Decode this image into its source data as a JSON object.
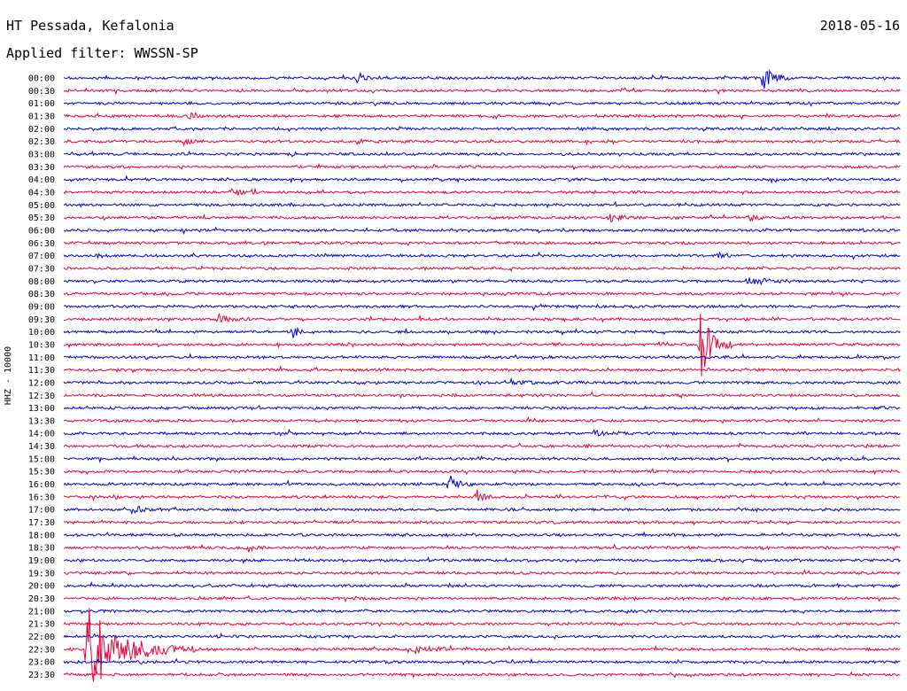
{
  "header": {
    "station": "HT Pessada, Kefalonia",
    "date": "2018-05-16",
    "filter": "Applied filter: WWSSN-SP"
  },
  "chart_data": {
    "type": "line",
    "channel_label": "HHZ - 10000",
    "colors": [
      "#0000cc",
      "#e8003a"
    ],
    "rows": [
      "00:00",
      "00:30",
      "01:00",
      "01:30",
      "02:00",
      "02:30",
      "03:00",
      "03:30",
      "04:00",
      "04:30",
      "05:00",
      "05:30",
      "06:00",
      "06:30",
      "07:00",
      "07:30",
      "08:00",
      "08:30",
      "09:00",
      "09:30",
      "10:00",
      "10:30",
      "11:00",
      "11:30",
      "12:00",
      "12:30",
      "13:00",
      "13:30",
      "14:00",
      "14:30",
      "15:00",
      "15:30",
      "16:00",
      "16:30",
      "17:00",
      "17:30",
      "18:00",
      "18:30",
      "19:00",
      "19:30",
      "20:00",
      "20:30",
      "21:00",
      "21:30",
      "22:00",
      "22:30",
      "23:00",
      "23:30"
    ],
    "row_minutes": 30,
    "events": [
      {
        "row": "00:00",
        "minute": 25.0,
        "amplitude": 16,
        "duration_min": 1.2
      },
      {
        "row": "00:00",
        "minute": 10.5,
        "amplitude": 4,
        "duration_min": 1.0
      },
      {
        "row": "01:30",
        "minute": 4.5,
        "amplitude": 4,
        "duration_min": 0.6
      },
      {
        "row": "02:30",
        "minute": 4.3,
        "amplitude": 6,
        "duration_min": 0.8
      },
      {
        "row": "02:30",
        "minute": 10.5,
        "amplitude": 3,
        "duration_min": 1.0
      },
      {
        "row": "04:30",
        "minute": 6.0,
        "amplitude": 3,
        "duration_min": 2.0
      },
      {
        "row": "05:30",
        "minute": 19.5,
        "amplitude": 5,
        "duration_min": 1.5
      },
      {
        "row": "05:30",
        "minute": 24.5,
        "amplitude": 4,
        "duration_min": 1.5
      },
      {
        "row": "07:00",
        "minute": 1.2,
        "amplitude": 5,
        "duration_min": 0.6
      },
      {
        "row": "07:00",
        "minute": 23.4,
        "amplitude": 6,
        "duration_min": 0.8
      },
      {
        "row": "08:00",
        "minute": 24.5,
        "amplitude": 4,
        "duration_min": 3.0
      },
      {
        "row": "09:30",
        "minute": 5.5,
        "amplitude": 6,
        "duration_min": 1.2
      },
      {
        "row": "10:00",
        "minute": 8.2,
        "amplitude": 7,
        "duration_min": 0.8
      },
      {
        "row": "10:30",
        "minute": 22.8,
        "amplitude": 48,
        "duration_min": 1.2
      },
      {
        "row": "12:00",
        "minute": 16.0,
        "amplitude": 4,
        "duration_min": 1.5
      },
      {
        "row": "13:00",
        "minute": 29.0,
        "amplitude": 3,
        "duration_min": 1.5
      },
      {
        "row": "14:00",
        "minute": 19.0,
        "amplitude": 3,
        "duration_min": 2.0
      },
      {
        "row": "16:00",
        "minute": 13.8,
        "amplitude": 12,
        "duration_min": 0.9
      },
      {
        "row": "16:00",
        "minute": 20.5,
        "amplitude": 3,
        "duration_min": 0.5
      },
      {
        "row": "16:30",
        "minute": 14.8,
        "amplitude": 9,
        "duration_min": 0.9
      },
      {
        "row": "17:00",
        "minute": 2.5,
        "amplitude": 8,
        "duration_min": 0.6
      },
      {
        "row": "18:30",
        "minute": 6.6,
        "amplitude": 6,
        "duration_min": 0.6
      },
      {
        "row": "22:30",
        "minute": 0.8,
        "amplitude": 50,
        "duration_min": 4.0
      },
      {
        "row": "22:30",
        "minute": 12.5,
        "amplitude": 5,
        "duration_min": 2.0
      }
    ]
  }
}
